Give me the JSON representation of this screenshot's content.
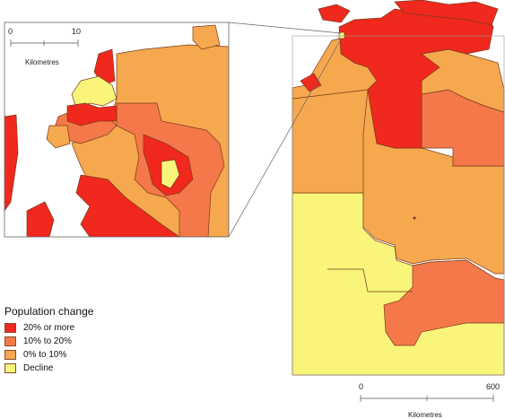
{
  "colors": {
    "cat_20_or_more": "#f0281e",
    "cat_10_to_20": "#f5784a",
    "cat_0_to_10": "#f5a84e",
    "cat_decline": "#f8f57a",
    "boundary": "#7a3a1a",
    "land_white": "#ffffff"
  },
  "inset_scale": {
    "start": "0",
    "end": "10",
    "unit": "Kilometres"
  },
  "main_scale": {
    "start": "0",
    "end": "600",
    "unit": "Kilometres"
  },
  "legend": {
    "title": "Population change",
    "items": [
      {
        "label": "20% or more",
        "color": "#f0281e"
      },
      {
        "label": "10% to 20%",
        "color": "#f5784a"
      },
      {
        "label": "0% to 10%",
        "color": "#f5a84e"
      },
      {
        "label": "Decline",
        "color": "#f8f57a"
      }
    ]
  }
}
